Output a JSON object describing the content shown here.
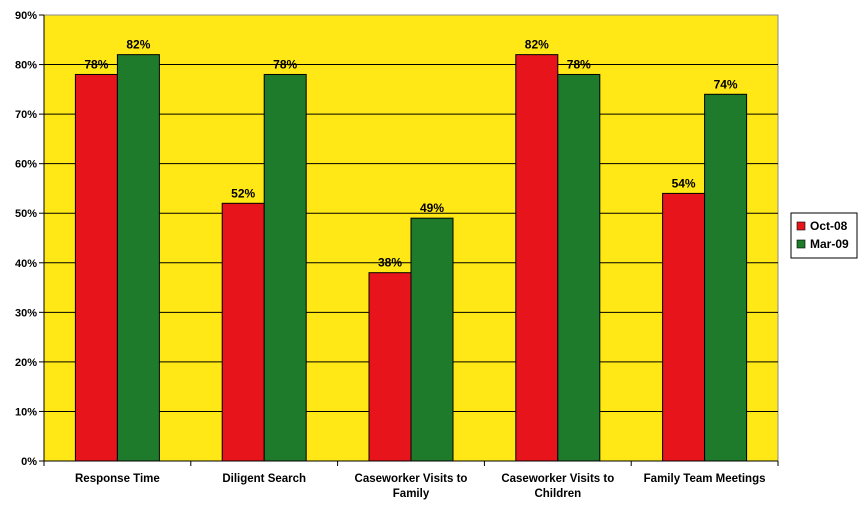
{
  "chart_data": {
    "type": "bar",
    "categories": [
      [
        "Response Time"
      ],
      [
        "Diligent Search"
      ],
      [
        "Caseworker Visits to",
        "Family"
      ],
      [
        "Caseworker Visits to",
        "Children"
      ],
      [
        "Family Team Meetings"
      ]
    ],
    "series": [
      {
        "name": "Oct-08",
        "values": [
          78,
          52,
          38,
          82,
          54
        ],
        "labels": [
          "78%",
          "52%",
          "38%",
          "82%",
          "54%"
        ],
        "color": "#e8141c"
      },
      {
        "name": "Mar-09",
        "values": [
          82,
          78,
          49,
          78,
          74
        ],
        "labels": [
          "82%",
          "78%",
          "49%",
          "78%",
          "74%"
        ],
        "color": "#1e7b2c"
      }
    ],
    "yticks": [
      "0%",
      "10%",
      "20%",
      "30%",
      "40%",
      "50%",
      "60%",
      "70%",
      "80%",
      "90%"
    ],
    "ylim": [
      0,
      90
    ],
    "grid": true,
    "legend_position": "right",
    "plot_background": "#ffe816"
  }
}
